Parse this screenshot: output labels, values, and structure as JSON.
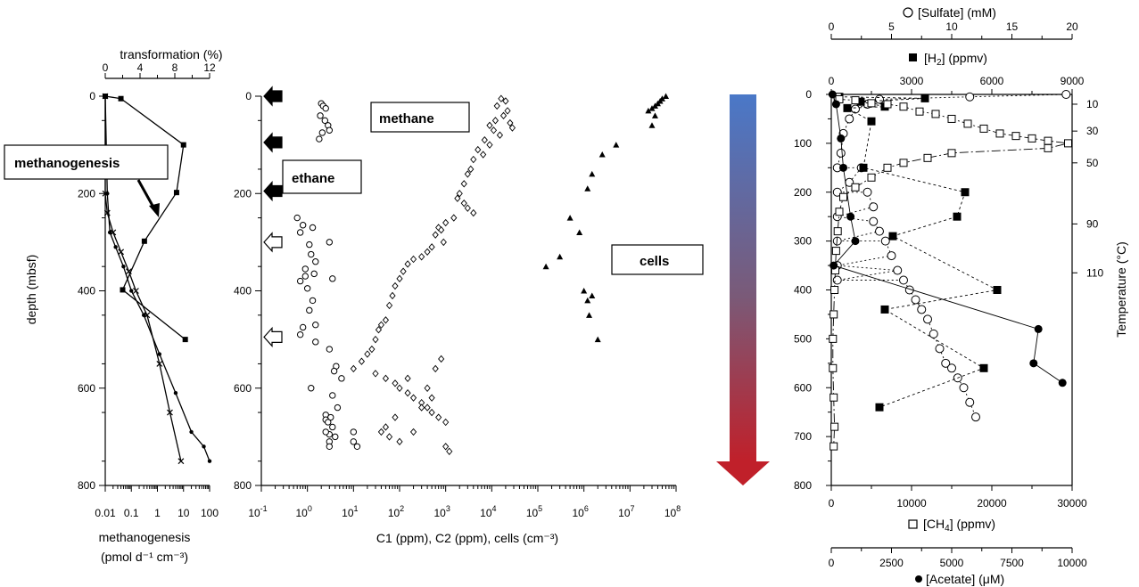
{
  "chart_data": [
    {
      "type": "line",
      "panel": "left",
      "xlabel_bottom": "methanogenesis",
      "xlabel_bottom_unit": "(pmol d⁻¹ cm⁻³)",
      "xlabel_top": "transformation (%)",
      "ylabel": "depth (mbsf)",
      "ylim": [
        0,
        800
      ],
      "yticks": [
        "0",
        "200",
        "400",
        "600",
        "800"
      ],
      "xticks_bottom": [
        "0.01",
        "0.1",
        "1",
        "10",
        "100"
      ],
      "xticks_top": [
        "0",
        "4",
        "8",
        "12"
      ],
      "x_bottom_scale": "log",
      "annotation": "methanogenesis",
      "series": [
        {
          "name": "transformation (%)",
          "axis": "top",
          "marker": "square",
          "x": [
            0,
            1.8,
            9,
            8.2,
            4.5,
            2.0,
            9.2
          ],
          "y": [
            0,
            5,
            100,
            198,
            298,
            398,
            500
          ]
        },
        {
          "axis": "bottom",
          "marker": "x",
          "x": [
            0.01,
            0.01,
            0.01,
            0.012,
            0.02,
            0.04,
            0.08,
            0.15,
            0.4,
            1.2,
            3,
            8
          ],
          "y": [
            0,
            110,
            200,
            240,
            280,
            320,
            360,
            400,
            450,
            550,
            650,
            750
          ]
        },
        {
          "axis": "bottom",
          "marker": "dot",
          "x": [
            0.01,
            0.012,
            0.015,
            0.025,
            0.05,
            0.1,
            0.3,
            1.2,
            5,
            20,
            60,
            100
          ],
          "y": [
            0,
            200,
            280,
            310,
            350,
            400,
            450,
            530,
            610,
            690,
            720,
            750
          ]
        }
      ]
    },
    {
      "type": "scatter",
      "panel": "middle",
      "xlabel": "C1 (ppm), C2 (ppm), cells (cm⁻³)",
      "x_scale": "log",
      "xlim": [
        0.1,
        100000000
      ],
      "ylim": [
        0,
        800
      ],
      "yticks": [
        "0",
        "200",
        "400",
        "600",
        "800"
      ],
      "xticks": [
        {
          "base": "10",
          "exp": "-1"
        },
        {
          "base": "10",
          "exp": "0"
        },
        {
          "base": "10",
          "exp": "1"
        },
        {
          "base": "10",
          "exp": "2"
        },
        {
          "base": "10",
          "exp": "3"
        },
        {
          "base": "10",
          "exp": "4"
        },
        {
          "base": "10",
          "exp": "5"
        },
        {
          "base": "10",
          "exp": "6"
        },
        {
          "base": "10",
          "exp": "7"
        },
        {
          "base": "10",
          "exp": "8"
        }
      ],
      "labels": {
        "methane": "methane",
        "ethane": "ethane",
        "cells": "cells"
      },
      "arrows": [
        {
          "depth": 0,
          "filled": true
        },
        {
          "depth": 95,
          "filled": true
        },
        {
          "depth": 195,
          "filled": true
        },
        {
          "depth": 300,
          "filled": false
        },
        {
          "depth": 495,
          "filled": false
        }
      ],
      "series": [
        {
          "name": "ethane",
          "marker": "circle",
          "x": [
            2,
            2.2,
            2.5,
            1.9,
            2.4,
            2.8,
            3,
            2.1,
            1.8,
            0.6,
            0.8,
            0.7,
            1.3,
            1.1,
            3,
            1.2,
            1.5,
            0.9,
            1.4,
            3.5,
            0.7,
            0.9,
            1,
            1.3,
            1.1,
            1.5,
            0.8,
            0.7,
            1.5,
            3,
            4.2,
            3.8,
            5.5,
            1.2,
            3.5,
            4.5,
            2.5,
            3.2,
            2.5,
            3.5,
            3,
            4,
            3,
            3,
            2.5,
            2.8,
            10,
            12,
            10
          ],
          "y": [
            15,
            20,
            25,
            40,
            50,
            60,
            70,
            75,
            88,
            250,
            265,
            280,
            270,
            305,
            300,
            325,
            340,
            355,
            365,
            375,
            380,
            370,
            395,
            420,
            440,
            470,
            475,
            490,
            505,
            520,
            555,
            565,
            580,
            600,
            615,
            640,
            655,
            660,
            665,
            680,
            695,
            700,
            710,
            720,
            690,
            670,
            710,
            720,
            690
          ]
        },
        {
          "name": "methane",
          "marker": "diamond",
          "x": [
            16000,
            20000,
            13000,
            22000,
            18000,
            12000,
            25000,
            28000,
            9000,
            11000,
            15000,
            7000,
            9000,
            5000,
            6500,
            4000,
            3500,
            3000,
            2500,
            2000,
            1800,
            2500,
            3000,
            4000,
            1500,
            1000,
            700,
            800,
            600,
            900,
            500,
            400,
            300,
            200,
            150,
            120,
            100,
            80,
            70,
            60,
            50,
            40,
            35,
            30,
            25,
            20,
            15,
            10,
            30,
            50,
            80,
            100,
            150,
            200,
            300,
            400,
            500,
            700,
            1000,
            50,
            40,
            60,
            100,
            200,
            80,
            300,
            500,
            400,
            150,
            600,
            800,
            1000,
            1200
          ],
          "y": [
            5,
            10,
            20,
            30,
            40,
            50,
            55,
            65,
            60,
            70,
            80,
            90,
            100,
            110,
            120,
            130,
            150,
            160,
            180,
            200,
            210,
            220,
            230,
            240,
            250,
            260,
            270,
            275,
            285,
            300,
            310,
            320,
            330,
            335,
            345,
            360,
            375,
            390,
            410,
            430,
            460,
            470,
            480,
            500,
            520,
            530,
            545,
            560,
            570,
            580,
            590,
            600,
            610,
            620,
            630,
            640,
            650,
            660,
            670,
            680,
            690,
            700,
            710,
            690,
            660,
            640,
            620,
            600,
            580,
            560,
            540,
            720,
            730
          ]
        },
        {
          "name": "cells",
          "marker": "triangle",
          "x": [
            60000000,
            50000000,
            45000000,
            40000000,
            35000000,
            30000000,
            25000000,
            35000000,
            30000000,
            5000000,
            2500000,
            1500000,
            1200000,
            500000,
            800000,
            300000,
            150000,
            1000000,
            1500000,
            1200000,
            1300000,
            2000000
          ],
          "y": [
            0,
            5,
            10,
            15,
            20,
            25,
            30,
            40,
            60,
            100,
            120,
            160,
            190,
            250,
            280,
            330,
            350,
            400,
            410,
            420,
            450,
            500
          ]
        }
      ]
    },
    {
      "type": "scatter",
      "panel": "right",
      "ylim": [
        0,
        800
      ],
      "yticks": [
        "0",
        "100",
        "200",
        "300",
        "400",
        "500",
        "600",
        "700",
        "800"
      ],
      "axes": {
        "sulfate": {
          "label": "[Sulfate]  (mM)",
          "range": [
            0,
            20
          ],
          "ticks": [
            "0",
            "5",
            "10",
            "15",
            "20"
          ]
        },
        "h2": {
          "label": "[H",
          "label_sub": "2",
          "label_end": "] (ppmv)",
          "range": [
            0,
            9000
          ],
          "ticks": [
            "0",
            "3000",
            "6000",
            "9000"
          ]
        },
        "ch4": {
          "label": "[CH",
          "label_sub": "4",
          "label_end": "] (ppmv)",
          "range": [
            0,
            30000
          ],
          "ticks": [
            "0",
            "10000",
            "20000",
            "30000"
          ]
        },
        "acetate": {
          "label": "[Acetate] (μM)",
          "range": [
            0,
            10000
          ],
          "ticks": [
            "0",
            "2500",
            "5000",
            "7500",
            "10000"
          ]
        }
      },
      "temperature_axis": {
        "label": "Temperature (°C)",
        "ticks": [
          {
            "label": "10",
            "depth": 20
          },
          {
            "label": "30",
            "depth": 75
          },
          {
            "label": "50",
            "depth": 140
          },
          {
            "label": "90",
            "depth": 265
          },
          {
            "label": "110",
            "depth": 365
          }
        ]
      },
      "series": [
        {
          "name": "[Sulfate]",
          "marker": "open-circle",
          "axis": "sulfate",
          "x": [
            19.5,
            11.5,
            4.0,
            3.0,
            2.0,
            1.5,
            1.0,
            0.8,
            0.5,
            0.5,
            0.5,
            0.5,
            0.5,
            0.5,
            1.5,
            2.5,
            3.0,
            3.5,
            3.5,
            4.0,
            4.5,
            5.0,
            5.5,
            6.0,
            6.5,
            7.0,
            7.5,
            8.0,
            8.5,
            9.0,
            9.5,
            10.0,
            10.5,
            11.0,
            11.5,
            12.0
          ],
          "y": [
            0,
            5,
            10,
            20,
            30,
            50,
            80,
            120,
            150,
            200,
            250,
            300,
            350,
            380,
            180,
            150,
            200,
            230,
            260,
            280,
            300,
            330,
            360,
            380,
            400,
            420,
            440,
            460,
            490,
            520,
            550,
            560,
            580,
            600,
            630,
            660
          ]
        },
        {
          "name": "[H2]",
          "marker": "filled-square",
          "axis": "h2",
          "x": [
            300,
            3500,
            1100,
            2000,
            600,
            1500,
            1200,
            5000,
            4700,
            2300,
            6200,
            2000,
            5700,
            1800
          ],
          "y": [
            5,
            8,
            15,
            25,
            28,
            55,
            150,
            200,
            250,
            290,
            400,
            440,
            560,
            640
          ]
        },
        {
          "name": "[CH4]",
          "marker": "open-square",
          "axis": "ch4",
          "x": [
            800,
            1000,
            3000,
            5000,
            7000,
            9000,
            11000,
            13000,
            15000,
            17000,
            19000,
            21000,
            23000,
            25000,
            27000,
            29500,
            27000,
            15000,
            12000,
            9000,
            7000,
            5000,
            3000,
            1500,
            1000,
            800,
            600,
            500,
            400,
            300,
            200,
            200,
            300,
            400,
            300
          ],
          "y": [
            5,
            10,
            12,
            18,
            20,
            25,
            35,
            40,
            50,
            60,
            70,
            80,
            85,
            90,
            95,
            100,
            110,
            120,
            130,
            140,
            150,
            170,
            190,
            210,
            240,
            280,
            320,
            360,
            400,
            450,
            500,
            560,
            620,
            680,
            720
          ]
        },
        {
          "name": "[Acetate]",
          "marker": "filled-circle",
          "axis": "acetate",
          "x": [
            50,
            200,
            400,
            500,
            800,
            1000,
            100,
            8600,
            8400,
            9600
          ],
          "y": [
            0,
            20,
            90,
            150,
            250,
            300,
            350,
            480,
            550,
            590
          ]
        }
      ]
    }
  ]
}
